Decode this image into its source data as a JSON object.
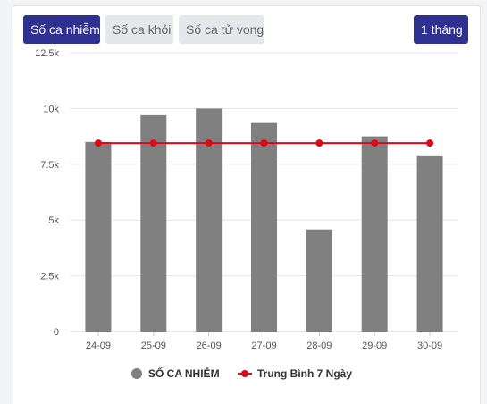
{
  "tabs": [
    {
      "label": "Số ca nhiễm",
      "active": true
    },
    {
      "label": "Số ca khỏi",
      "active": false
    },
    {
      "label": "Số ca tử vong",
      "active": false
    }
  ],
  "range_button": {
    "label": "1 tháng"
  },
  "colors": {
    "accent": "#2f3192",
    "bar": "#808080",
    "line": "#e30613",
    "tab_inactive_bg": "#e6e7eb"
  },
  "chart_data": {
    "type": "bar",
    "categories": [
      "24-09",
      "25-09",
      "26-09",
      "27-09",
      "28-09",
      "29-09",
      "30-09"
    ],
    "series": [
      {
        "name": "SỐ CA NHIỄM",
        "type": "bar",
        "values": [
          8500,
          9700,
          10000,
          9350,
          4580,
          8750,
          7900
        ]
      },
      {
        "name": "Trung Bình 7 Ngày",
        "type": "line",
        "values": [
          8450,
          8450,
          8450,
          8450,
          8450,
          8450,
          8450
        ]
      }
    ],
    "y_ticks": [
      0,
      2500,
      5000,
      7500,
      10000,
      12500
    ],
    "y_tick_labels": [
      "0",
      "2.5k",
      "5k",
      "7.5k",
      "10k",
      "12.5k"
    ],
    "ylim": [
      0,
      12500
    ],
    "grid": true,
    "legend_position": "bottom"
  }
}
